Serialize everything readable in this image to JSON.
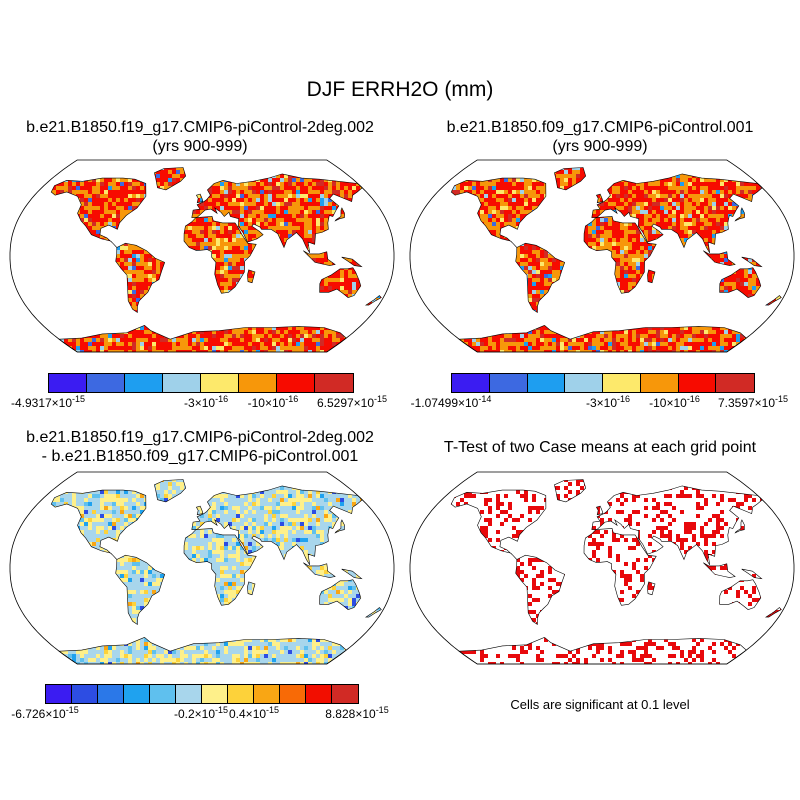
{
  "figure": {
    "title": "DJF ERRH2O (mm)"
  },
  "panels": {
    "top_left": {
      "title_line1": "b.e21.B1850.f19_g17.CMIP6-piControl-2deg.002",
      "title_line2": "(yrs 900-999)",
      "colorbar": {
        "colors": [
          "#3b1cf2",
          "#3d69e1",
          "#1e9ef0",
          "#9fd1ea",
          "#fde96b",
          "#f7970a",
          "#f70b00",
          "#d12a25"
        ],
        "labels": [
          {
            "base": "-4.9317",
            "exp": "-15"
          },
          {
            "base": "-3",
            "exp": "-16"
          },
          {
            "base": "-10",
            "exp": "-16"
          },
          {
            "base": "6.5297",
            "exp": "-15"
          }
        ]
      }
    },
    "top_right": {
      "title_line1": "b.e21.B1850.f09_g17.CMIP6-piControl.001",
      "title_line2": "(yrs 900-999)",
      "colorbar": {
        "colors": [
          "#3b1cf2",
          "#3d69e1",
          "#1e9ef0",
          "#9fd1ea",
          "#fde96b",
          "#f7970a",
          "#f70b00",
          "#d12a25"
        ],
        "labels": [
          {
            "base": "-1.07499",
            "exp": "-14"
          },
          {
            "base": "-3",
            "exp": "-16"
          },
          {
            "base": "-10",
            "exp": "-16"
          },
          {
            "base": "7.3597",
            "exp": "-15"
          }
        ]
      }
    },
    "bottom_left": {
      "title_line1": "b.e21.B1850.f19_g17.CMIP6-piControl-2deg.002",
      "title_line2": "- b.e21.B1850.f09_g17.CMIP6-piControl.001",
      "colorbar": {
        "colors": [
          "#3b1cf2",
          "#2d4de3",
          "#2b78e8",
          "#1fa2ef",
          "#5fc0ee",
          "#a8d6ec",
          "#fef08a",
          "#fdd23a",
          "#f9a614",
          "#f86a06",
          "#f20e00",
          "#d12a25"
        ],
        "labels": [
          {
            "base": "-6.726",
            "exp": "-15"
          },
          {
            "base": "-0.2",
            "exp": "-15"
          },
          {
            "base": "0.4",
            "exp": "-15"
          },
          {
            "base": "8.828",
            "exp": "-15"
          }
        ]
      }
    },
    "bottom_right": {
      "title": "T-Test of two Case means at each grid point",
      "note": "Cells are significant at 0.1 level",
      "significant_color": "#e8090c"
    }
  },
  "map_style": {
    "ocean_color": "#ffffff",
    "outline_color": "#000000",
    "dominant_land_color_top": "#f3560a",
    "dominant_land_color_diff": "#b9dce8"
  }
}
